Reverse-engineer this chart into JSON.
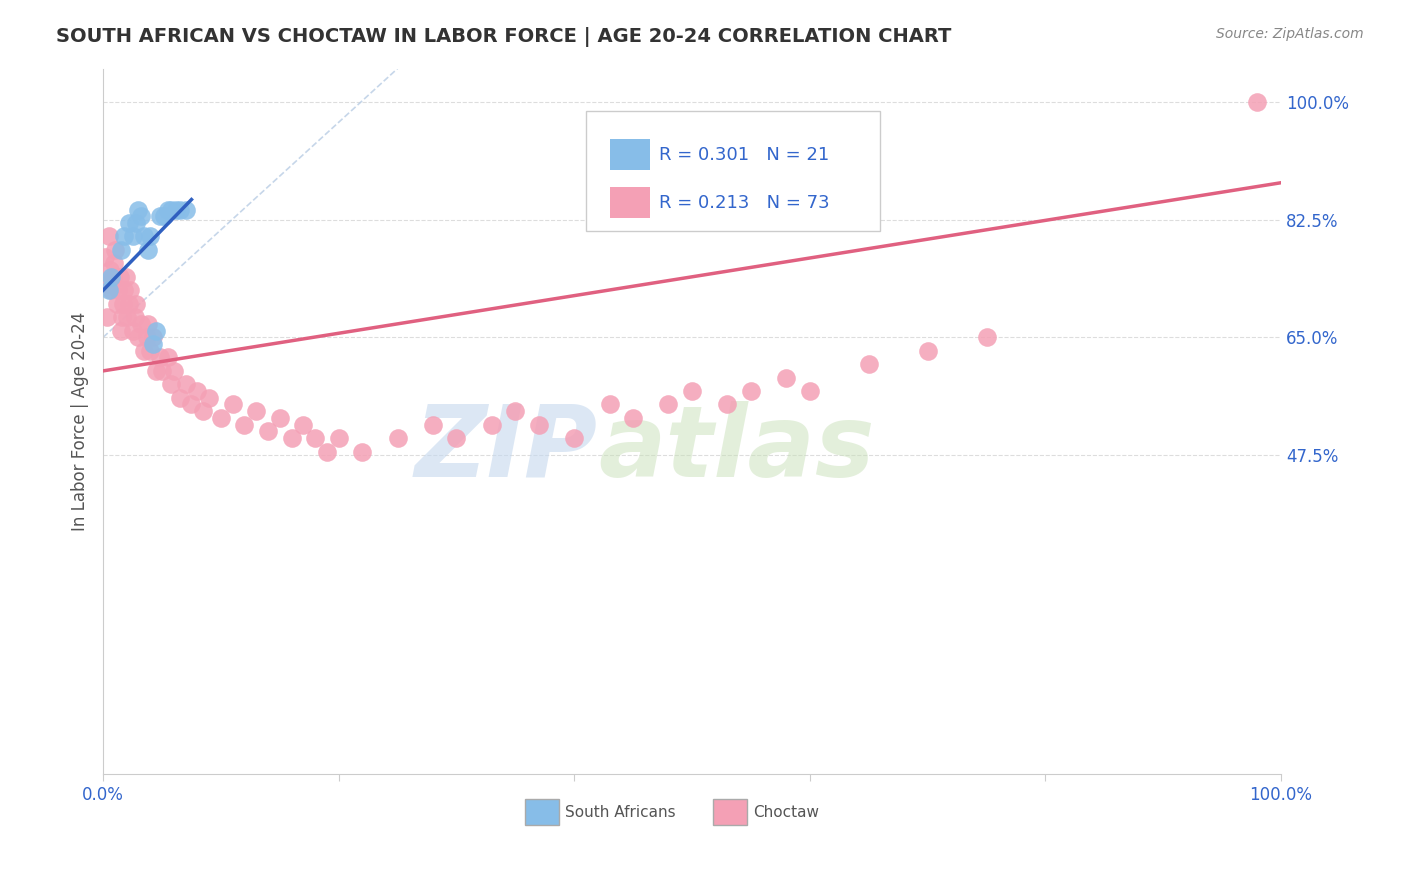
{
  "title": "SOUTH AFRICAN VS CHOCTAW IN LABOR FORCE | AGE 20-24 CORRELATION CHART",
  "source_text": "Source: ZipAtlas.com",
  "ylabel": "In Labor Force | Age 20-24",
  "xlim": [
    0.0,
    1.0
  ],
  "ylim": [
    0.0,
    1.05
  ],
  "right_yticks": [
    0.475,
    0.65,
    0.825,
    1.0
  ],
  "right_ytick_labels": [
    "47.5%",
    "65.0%",
    "82.5%",
    "100.0%"
  ],
  "grid_yticks": [
    0.475,
    0.65,
    0.825,
    1.0
  ],
  "legend_blue_r": "R = 0.301",
  "legend_blue_n": "N = 21",
  "legend_pink_r": "R = 0.213",
  "legend_pink_n": "N = 73",
  "blue_color": "#87bde8",
  "pink_color": "#f4a0b5",
  "blue_line_color": "#3060c0",
  "pink_line_color": "#e06080",
  "ref_line_color": "#b8cce4",
  "watermark_zip": "ZIP",
  "watermark_atlas": "atlas",
  "title_color": "#333333",
  "source_color": "#888888",
  "blue_scatter_x": [
    0.005,
    0.007,
    0.015,
    0.018,
    0.022,
    0.025,
    0.028,
    0.03,
    0.032,
    0.035,
    0.038,
    0.04,
    0.042,
    0.045,
    0.048,
    0.052,
    0.055,
    0.058,
    0.062,
    0.065,
    0.07
  ],
  "blue_scatter_y": [
    0.72,
    0.74,
    0.78,
    0.8,
    0.82,
    0.8,
    0.82,
    0.84,
    0.83,
    0.8,
    0.78,
    0.8,
    0.64,
    0.66,
    0.83,
    0.83,
    0.84,
    0.84,
    0.84,
    0.84,
    0.84
  ],
  "pink_scatter_x": [
    0.002,
    0.003,
    0.004,
    0.005,
    0.006,
    0.007,
    0.008,
    0.009,
    0.01,
    0.012,
    0.013,
    0.014,
    0.015,
    0.016,
    0.017,
    0.018,
    0.019,
    0.02,
    0.022,
    0.023,
    0.025,
    0.027,
    0.028,
    0.03,
    0.032,
    0.035,
    0.037,
    0.038,
    0.04,
    0.042,
    0.045,
    0.048,
    0.05,
    0.055,
    0.058,
    0.06,
    0.065,
    0.07,
    0.075,
    0.08,
    0.085,
    0.09,
    0.1,
    0.11,
    0.12,
    0.13,
    0.14,
    0.15,
    0.16,
    0.17,
    0.18,
    0.19,
    0.2,
    0.22,
    0.25,
    0.28,
    0.3,
    0.33,
    0.35,
    0.37,
    0.4,
    0.43,
    0.45,
    0.48,
    0.5,
    0.53,
    0.55,
    0.58,
    0.6,
    0.65,
    0.7,
    0.75,
    0.98
  ],
  "pink_scatter_y": [
    0.77,
    0.68,
    0.73,
    0.8,
    0.75,
    0.72,
    0.74,
    0.76,
    0.78,
    0.7,
    0.72,
    0.74,
    0.66,
    0.68,
    0.7,
    0.72,
    0.74,
    0.68,
    0.7,
    0.72,
    0.66,
    0.68,
    0.7,
    0.65,
    0.67,
    0.63,
    0.65,
    0.67,
    0.63,
    0.65,
    0.6,
    0.62,
    0.6,
    0.62,
    0.58,
    0.6,
    0.56,
    0.58,
    0.55,
    0.57,
    0.54,
    0.56,
    0.53,
    0.55,
    0.52,
    0.54,
    0.51,
    0.53,
    0.5,
    0.52,
    0.5,
    0.48,
    0.5,
    0.48,
    0.5,
    0.52,
    0.5,
    0.52,
    0.54,
    0.52,
    0.5,
    0.55,
    0.53,
    0.55,
    0.57,
    0.55,
    0.57,
    0.59,
    0.57,
    0.61,
    0.63,
    0.65,
    1.0
  ],
  "blue_line_x": [
    0.0,
    0.075
  ],
  "blue_line_y_intercept": 0.72,
  "blue_line_slope": 1.8,
  "pink_line_x": [
    0.0,
    1.0
  ],
  "pink_line_y_intercept": 0.6,
  "pink_line_slope": 0.28,
  "ref_line_x0": 0.0,
  "ref_line_y0": 0.65,
  "ref_line_x1": 0.25,
  "ref_line_y1": 1.05
}
